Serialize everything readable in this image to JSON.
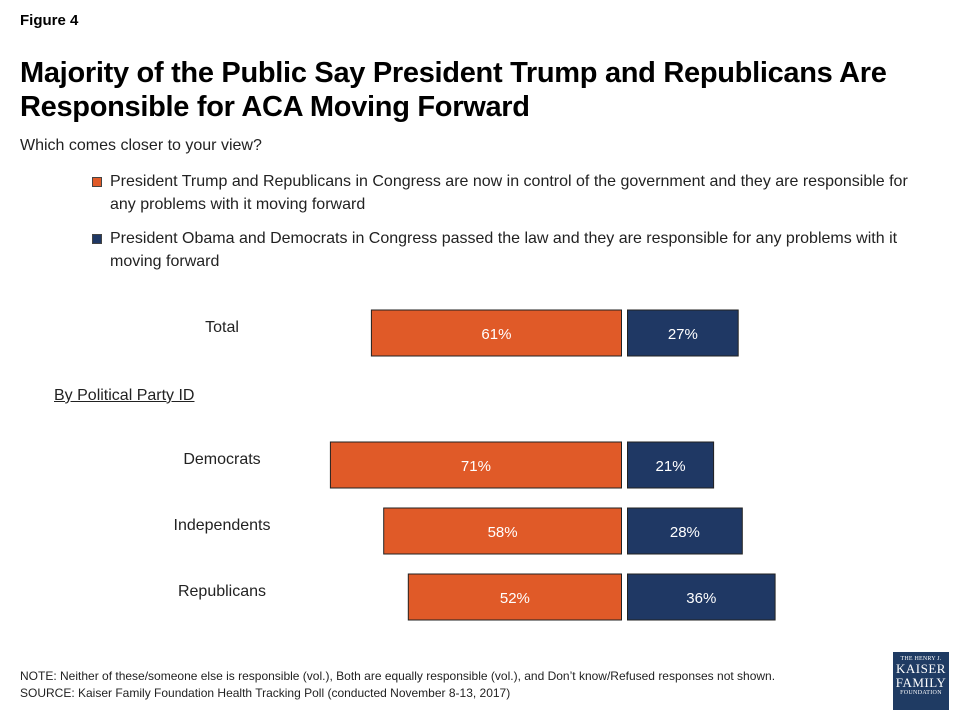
{
  "figure_label": "Figure 4",
  "colors": {
    "trump": "#e05a28",
    "obama": "#1f3864",
    "logo_bg": "#1f3b63"
  },
  "legend": [
    {
      "label": "President Trump and Republicans in Congress are now in control of the government and they are responsible for any problems with it moving forward",
      "color": "#e05a28"
    },
    {
      "label": "President Obama and Democrats in Congress passed the law and they are responsible for any problems with it moving forward",
      "color": "#1f3864"
    }
  ],
  "group_heading": "By Political Party ID",
  "chart_data": {
    "type": "bar",
    "orientation": "horizontal-diverging",
    "title": "Majority of the Public Say President Trump and Republicans Are Responsible for ACA Moving Forward",
    "subtitle": "Which comes closer to your view?",
    "categories": [
      "Total",
      "Democrats",
      "Independents",
      "Republicans"
    ],
    "series": [
      {
        "name": "President Trump and Republicans in Congress are now in control of the government and they are responsible for any problems with it moving forward",
        "values": [
          61,
          71,
          58,
          52
        ],
        "labels": [
          "61%",
          "71%",
          "58%",
          "52%"
        ],
        "color": "#e05a28"
      },
      {
        "name": "President Obama and Democrats in Congress passed the law and they are responsible for any problems with it moving forward",
        "values": [
          27,
          21,
          28,
          36
        ],
        "labels": [
          "27%",
          "21%",
          "28%",
          "36%"
        ],
        "color": "#1f3864"
      }
    ],
    "xlim": [
      0,
      100
    ],
    "grid": false,
    "legend_position": "top"
  },
  "footer": {
    "note": "NOTE: Neither of these/someone else is responsible (vol.), Both are equally responsible (vol.), and Don’t know/Refused responses not shown.",
    "source": "SOURCE: Kaiser Family Foundation Health Tracking Poll (conducted November 8-13, 2017)"
  },
  "logo": {
    "line1": "THE HENRY J.",
    "line2": "KAISER",
    "line3": "FAMILY",
    "line4": "FOUNDATION"
  }
}
